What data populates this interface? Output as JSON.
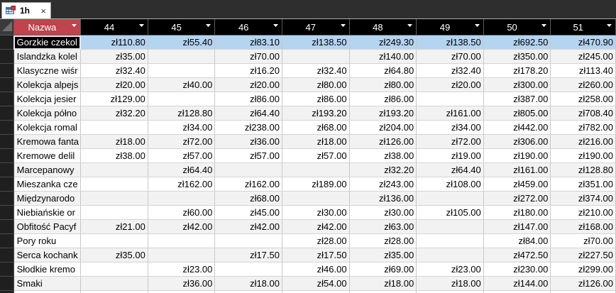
{
  "tab": {
    "label": "1h",
    "close": "×"
  },
  "columns": [
    "Nazwa",
    "44",
    "45",
    "46",
    "47",
    "48",
    "49",
    "50",
    "51"
  ],
  "rows": [
    [
      "Gorzkie czekol",
      "zł110.80",
      "zł55.40",
      "zł83.10",
      "zł138.50",
      "zł249.30",
      "zł138.50",
      "zł692.50",
      "zł470.90"
    ],
    [
      "Islandzka kolel",
      "zł35.00",
      "",
      "zł70.00",
      "",
      "zł140.00",
      "zł70.00",
      "zł350.00",
      "zł245.00"
    ],
    [
      "Klasyczne wiśr",
      "zł32.40",
      "",
      "zł16.20",
      "zł32.40",
      "zł64.80",
      "zł32.40",
      "zł178.20",
      "zł113.40"
    ],
    [
      "Kolekcja alpejs",
      "zł20.00",
      "zł40.00",
      "zł20.00",
      "zł80.00",
      "zł80.00",
      "zł20.00",
      "zł300.00",
      "zł260.00"
    ],
    [
      "Kolekcja jesier",
      "zł129.00",
      "",
      "zł86.00",
      "zł86.00",
      "zł86.00",
      "",
      "zł387.00",
      "zł258.00"
    ],
    [
      "Kolekcja półno",
      "zł32.20",
      "zł128.80",
      "zł64.40",
      "zł193.20",
      "zł193.20",
      "zł161.00",
      "zł805.00",
      "zł708.40"
    ],
    [
      "Kolekcja romal",
      "",
      "zł34.00",
      "zł238.00",
      "zł68.00",
      "zł204.00",
      "zł34.00",
      "zł442.00",
      "zł782.00"
    ],
    [
      "Kremowa fanta",
      "zł18.00",
      "zł72.00",
      "zł36.00",
      "zł18.00",
      "zł126.00",
      "zł72.00",
      "zł306.00",
      "zł216.00"
    ],
    [
      "Kremowe delil",
      "zł38.00",
      "zł57.00",
      "zł57.00",
      "zł57.00",
      "zł38.00",
      "zł19.00",
      "zł190.00",
      "zł190.00"
    ],
    [
      "Marcepanowy",
      "",
      "zł64.40",
      "",
      "",
      "zł32.20",
      "zł64.40",
      "zł161.00",
      "zł128.80"
    ],
    [
      "Mieszanka cze",
      "",
      "zł162.00",
      "zł162.00",
      "zł189.00",
      "zł243.00",
      "zł108.00",
      "zł459.00",
      "zł351.00"
    ],
    [
      "Międzynarodo",
      "",
      "",
      "zł68.00",
      "",
      "zł136.00",
      "",
      "zł272.00",
      "zł374.00"
    ],
    [
      "Niebiańskie or",
      "",
      "zł60.00",
      "zł45.00",
      "zł30.00",
      "zł30.00",
      "zł105.00",
      "zł180.00",
      "zł210.00"
    ],
    [
      "Obfitość Pacyf",
      "zł21.00",
      "zł42.00",
      "zł42.00",
      "zł42.00",
      "zł63.00",
      "",
      "zł147.00",
      "zł168.00"
    ],
    [
      "Pory roku",
      "",
      "",
      "",
      "zł28.00",
      "zł28.00",
      "",
      "zł84.00",
      "zł70.00"
    ],
    [
      "Serca kochank",
      "zł35.00",
      "",
      "zł17.50",
      "zł17.50",
      "zł35.00",
      "",
      "zł472.50",
      "zł227.50"
    ],
    [
      "Słodkie kremo",
      "",
      "zł23.00",
      "",
      "zł46.00",
      "zł69.00",
      "zł23.00",
      "zł230.00",
      "zł299.00"
    ],
    [
      "Smaki",
      "",
      "zł36.00",
      "zł18.00",
      "zł54.00",
      "zł18.00",
      "zł18.00",
      "zł144.00",
      "zł126.00"
    ],
    [
      "",
      "",
      "",
      "",
      "",
      "",
      "",
      "",
      ""
    ]
  ],
  "colors": {
    "tab_bar": "#2e2e2e",
    "header_bg": "#000000",
    "name_header_bg": "#c0434d",
    "selected_row_bg": "#b4d4f0"
  }
}
